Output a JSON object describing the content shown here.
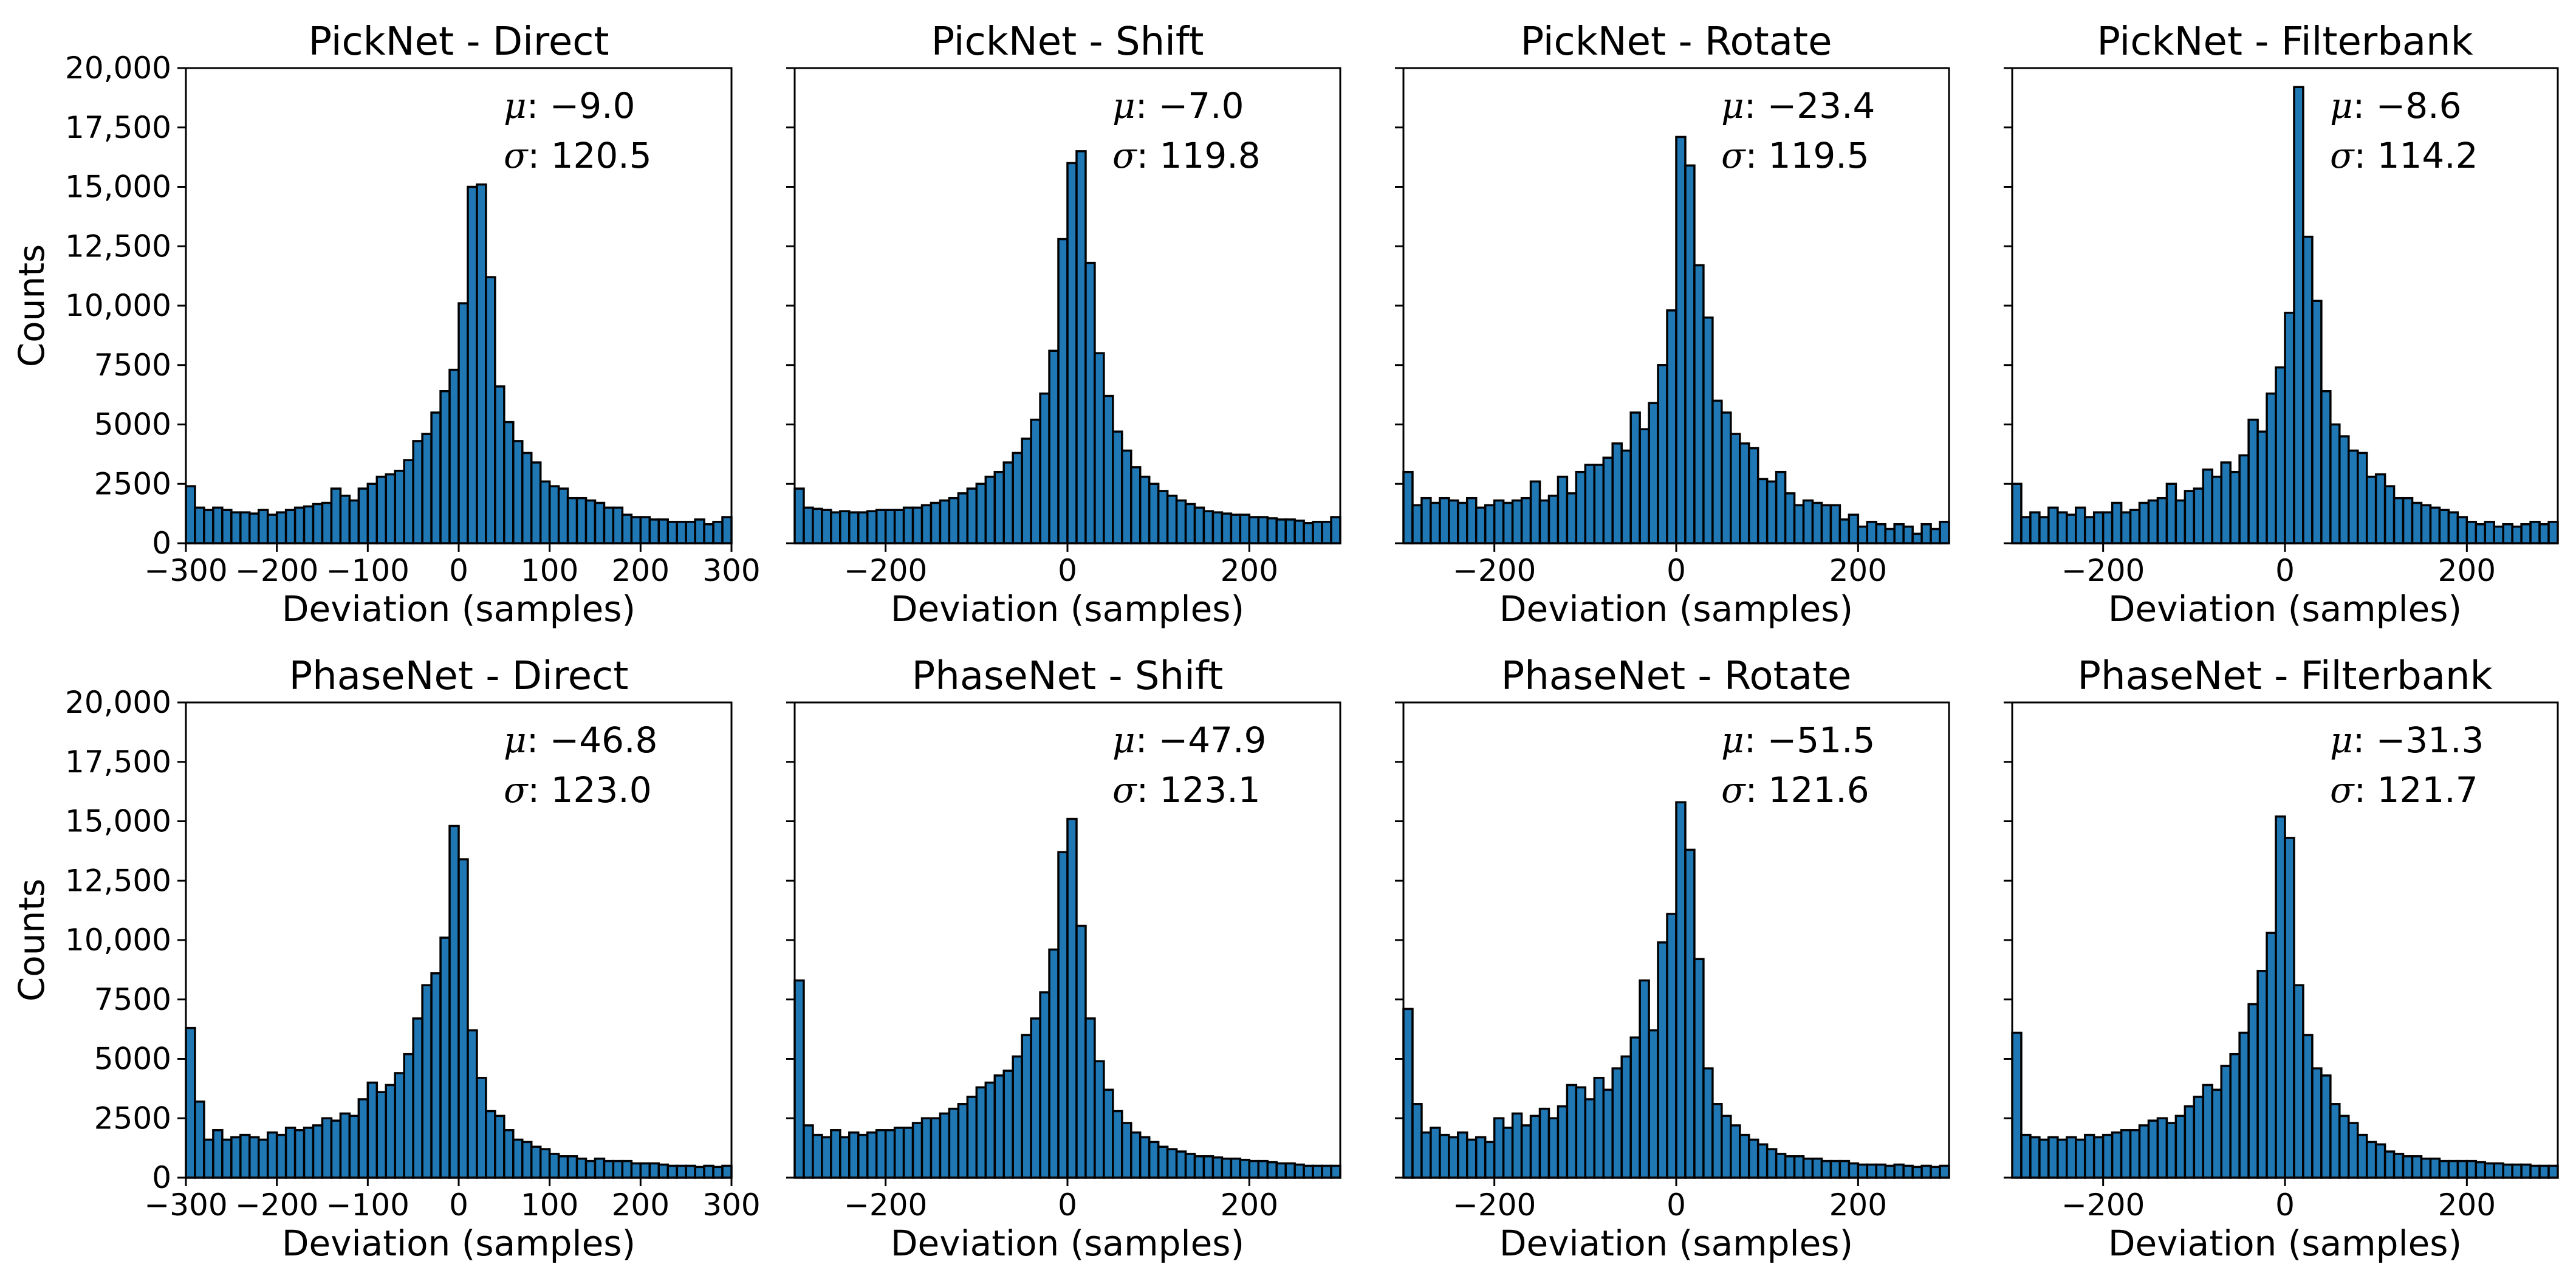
{
  "figure": {
    "bar_color": "#1f77b4",
    "edge_color": "#000000"
  },
  "chart_data": [
    {
      "type": "bar",
      "title": "PickNet - Direct",
      "xlabel": "Deviation (samples)",
      "ylabel": "Counts",
      "xlim": [
        -300,
        300
      ],
      "ylim": [
        0,
        20000
      ],
      "xticks": [
        -300,
        -200,
        -100,
        0,
        100,
        200,
        300
      ],
      "xtick_labels": [
        "−300",
        "−200",
        "−100",
        "0",
        "100",
        "200",
        "300"
      ],
      "yticks": [
        0,
        2500,
        5000,
        7500,
        10000,
        12500,
        15000,
        17500,
        20000
      ],
      "ytick_labels": [
        "0",
        "2500",
        "5000",
        "7500",
        "10,000",
        "12,500",
        "15,000",
        "17,500",
        "20,000"
      ],
      "bin_edges_range": [
        -300,
        300
      ],
      "bin_width": 10,
      "values": [
        2400,
        1500,
        1400,
        1500,
        1400,
        1300,
        1300,
        1250,
        1400,
        1200,
        1300,
        1400,
        1500,
        1550,
        1650,
        1700,
        2300,
        2000,
        1800,
        2300,
        2500,
        2800,
        2900,
        3050,
        3500,
        4300,
        4600,
        5500,
        6400,
        7300,
        10100,
        15000,
        15100,
        11200,
        6600,
        5100,
        4300,
        3800,
        3400,
        2600,
        2400,
        2300,
        1900,
        1900,
        1800,
        1700,
        1500,
        1500,
        1200,
        1100,
        1100,
        1000,
        1000,
        900,
        900,
        900,
        1000,
        800,
        900,
        1100
      ],
      "mu_label": "μ",
      "mu_value": ": −9.0",
      "sigma_label": "σ",
      "sigma_value": ": 120.5"
    },
    {
      "type": "bar",
      "title": "PickNet - Shift",
      "xlabel": "Deviation (samples)",
      "xlim": [
        -300,
        300
      ],
      "ylim": [
        0,
        20000
      ],
      "xticks": [
        -200,
        0,
        200
      ],
      "xtick_labels": [
        "−200",
        "0",
        "200"
      ],
      "bin_edges_range": [
        -300,
        300
      ],
      "bin_width": 10,
      "values": [
        2300,
        1500,
        1450,
        1400,
        1300,
        1350,
        1300,
        1300,
        1350,
        1400,
        1400,
        1400,
        1500,
        1500,
        1600,
        1700,
        1800,
        1900,
        2100,
        2300,
        2500,
        2800,
        3000,
        3400,
        3800,
        4400,
        5200,
        6300,
        8100,
        12800,
        16000,
        16500,
        11800,
        8000,
        6200,
        4700,
        3900,
        3200,
        2800,
        2500,
        2200,
        2000,
        1800,
        1650,
        1500,
        1350,
        1300,
        1250,
        1200,
        1200,
        1100,
        1100,
        1050,
        1000,
        1000,
        950,
        850,
        900,
        900,
        1100
      ],
      "mu_label": "μ",
      "mu_value": ": −7.0",
      "sigma_label": "σ",
      "sigma_value": ": 119.8"
    },
    {
      "type": "bar",
      "title": "PickNet - Rotate",
      "xlabel": "Deviation (samples)",
      "xlim": [
        -300,
        300
      ],
      "ylim": [
        0,
        20000
      ],
      "xticks": [
        -200,
        0,
        200
      ],
      "xtick_labels": [
        "−200",
        "0",
        "200"
      ],
      "bin_edges_range": [
        -300,
        300
      ],
      "bin_width": 10,
      "values": [
        3000,
        1600,
        1900,
        1700,
        1900,
        1800,
        1700,
        1900,
        1500,
        1600,
        1800,
        1700,
        1800,
        1900,
        2600,
        1800,
        2000,
        2800,
        2100,
        3000,
        3300,
        3300,
        3600,
        4200,
        3900,
        5500,
        4800,
        5900,
        7500,
        9800,
        17100,
        15900,
        11700,
        9500,
        6000,
        5500,
        4600,
        4200,
        4000,
        2700,
        2600,
        3000,
        2100,
        1600,
        1800,
        1700,
        1600,
        1600,
        1000,
        1200,
        700,
        900,
        800,
        600,
        800,
        700,
        400,
        800,
        600,
        900
      ],
      "mu_label": "μ",
      "mu_value": ": −23.4",
      "sigma_label": "σ",
      "sigma_value": ": 119.5"
    },
    {
      "type": "bar",
      "title": "PickNet - Filterbank",
      "xlabel": "Deviation (samples)",
      "xlim": [
        -300,
        300
      ],
      "ylim": [
        0,
        20000
      ],
      "xticks": [
        -200,
        0,
        200
      ],
      "xtick_labels": [
        "−200",
        "0",
        "200"
      ],
      "bin_edges_range": [
        -300,
        300
      ],
      "bin_width": 10,
      "values": [
        2500,
        1100,
        1300,
        1100,
        1500,
        1300,
        1200,
        1500,
        1100,
        1300,
        1300,
        1700,
        1300,
        1400,
        1700,
        1800,
        1900,
        2500,
        1800,
        2200,
        2300,
        3100,
        2800,
        3400,
        3000,
        3700,
        5200,
        4700,
        6300,
        7400,
        9700,
        19200,
        12900,
        10200,
        6400,
        5000,
        4500,
        3900,
        3800,
        2800,
        2900,
        2400,
        1900,
        1900,
        1700,
        1600,
        1500,
        1400,
        1300,
        1100,
        900,
        800,
        900,
        700,
        800,
        700,
        800,
        900,
        800,
        900
      ],
      "mu_label": "μ",
      "mu_value": ": −8.6",
      "sigma_label": "σ",
      "sigma_value": ": 114.2"
    },
    {
      "type": "bar",
      "title": "PhaseNet - Direct",
      "xlabel": "Deviation (samples)",
      "ylabel": "Counts",
      "xlim": [
        -300,
        300
      ],
      "ylim": [
        0,
        20000
      ],
      "xticks": [
        -300,
        -200,
        -100,
        0,
        100,
        200,
        300
      ],
      "xtick_labels": [
        "−300",
        "−200",
        "−100",
        "0",
        "100",
        "200",
        "300"
      ],
      "yticks": [
        0,
        2500,
        5000,
        7500,
        10000,
        12500,
        15000,
        17500,
        20000
      ],
      "ytick_labels": [
        "0",
        "2500",
        "5000",
        "7500",
        "10,000",
        "12,500",
        "15,000",
        "17,500",
        "20,000"
      ],
      "bin_edges_range": [
        -300,
        300
      ],
      "bin_width": 10,
      "values": [
        6300,
        3200,
        1600,
        2000,
        1600,
        1700,
        1800,
        1700,
        1600,
        1900,
        1800,
        2100,
        2000,
        2100,
        2200,
        2500,
        2400,
        2700,
        2600,
        3300,
        4000,
        3600,
        3900,
        4400,
        5200,
        6700,
        8100,
        8600,
        10100,
        14800,
        13400,
        6200,
        4200,
        2800,
        2600,
        2000,
        1600,
        1500,
        1300,
        1200,
        1000,
        900,
        900,
        800,
        700,
        800,
        700,
        700,
        700,
        600,
        600,
        600,
        550,
        500,
        500,
        500,
        450,
        500,
        450,
        500
      ],
      "mu_label": "μ",
      "mu_value": ": −46.8",
      "sigma_label": "σ",
      "sigma_value": ": 123.0"
    },
    {
      "type": "bar",
      "title": "PhaseNet - Shift",
      "xlabel": "Deviation (samples)",
      "xlim": [
        -300,
        300
      ],
      "ylim": [
        0,
        20000
      ],
      "xticks": [
        -200,
        0,
        200
      ],
      "xtick_labels": [
        "−200",
        "0",
        "200"
      ],
      "bin_edges_range": [
        -300,
        300
      ],
      "bin_width": 10,
      "values": [
        8300,
        2200,
        1800,
        1700,
        2000,
        1700,
        1900,
        1800,
        1900,
        2000,
        2000,
        2100,
        2100,
        2300,
        2500,
        2500,
        2700,
        2900,
        3100,
        3400,
        3800,
        4000,
        4300,
        4500,
        5100,
        6000,
        6700,
        7800,
        9600,
        13700,
        15100,
        10600,
        6700,
        4900,
        3700,
        2800,
        2300,
        1900,
        1700,
        1500,
        1300,
        1200,
        1100,
        1000,
        900,
        900,
        850,
        800,
        800,
        750,
        700,
        700,
        650,
        600,
        600,
        550,
        500,
        500,
        500,
        500
      ],
      "mu_label": "μ",
      "mu_value": ": −47.9",
      "sigma_label": "σ",
      "sigma_value": ": 123.1"
    },
    {
      "type": "bar",
      "title": "PhaseNet - Rotate",
      "xlabel": "Deviation (samples)",
      "xlim": [
        -300,
        300
      ],
      "ylim": [
        0,
        20000
      ],
      "xticks": [
        -200,
        0,
        200
      ],
      "xtick_labels": [
        "−200",
        "0",
        "200"
      ],
      "bin_edges_range": [
        -300,
        300
      ],
      "bin_width": 10,
      "values": [
        7100,
        3100,
        1900,
        2100,
        1800,
        1700,
        1900,
        1600,
        1700,
        1500,
        2500,
        2100,
        2700,
        2200,
        2600,
        2900,
        2500,
        3000,
        3900,
        3800,
        3300,
        4200,
        3700,
        4600,
        5100,
        5900,
        8300,
        6200,
        9900,
        11100,
        15800,
        13800,
        9200,
        4600,
        3100,
        2600,
        2200,
        1800,
        1600,
        1400,
        1200,
        1000,
        900,
        900,
        800,
        800,
        700,
        700,
        700,
        600,
        550,
        550,
        550,
        500,
        550,
        500,
        450,
        500,
        450,
        500
      ],
      "mu_label": "μ",
      "mu_value": ": −51.5",
      "sigma_label": "σ",
      "sigma_value": ": 121.6"
    },
    {
      "type": "bar",
      "title": "PhaseNet - Filterbank",
      "xlabel": "Deviation (samples)",
      "xlim": [
        -300,
        300
      ],
      "ylim": [
        0,
        20000
      ],
      "xticks": [
        -200,
        0,
        200
      ],
      "xtick_labels": [
        "−200",
        "0",
        "200"
      ],
      "bin_edges_range": [
        -300,
        300
      ],
      "bin_width": 10,
      "values": [
        6100,
        1800,
        1700,
        1600,
        1700,
        1600,
        1700,
        1600,
        1800,
        1700,
        1800,
        1900,
        2000,
        2000,
        2200,
        2400,
        2500,
        2300,
        2600,
        3000,
        3400,
        3900,
        3700,
        4700,
        5200,
        6100,
        7300,
        8700,
        10300,
        15200,
        14300,
        8100,
        6000,
        4600,
        4300,
        3100,
        2600,
        2300,
        1800,
        1500,
        1400,
        1100,
        1000,
        900,
        900,
        800,
        800,
        700,
        700,
        700,
        700,
        650,
        600,
        600,
        550,
        550,
        550,
        500,
        500,
        500
      ],
      "mu_label": "μ",
      "mu_value": ": −31.3",
      "sigma_label": "σ",
      "sigma_value": ": 121.7"
    }
  ]
}
